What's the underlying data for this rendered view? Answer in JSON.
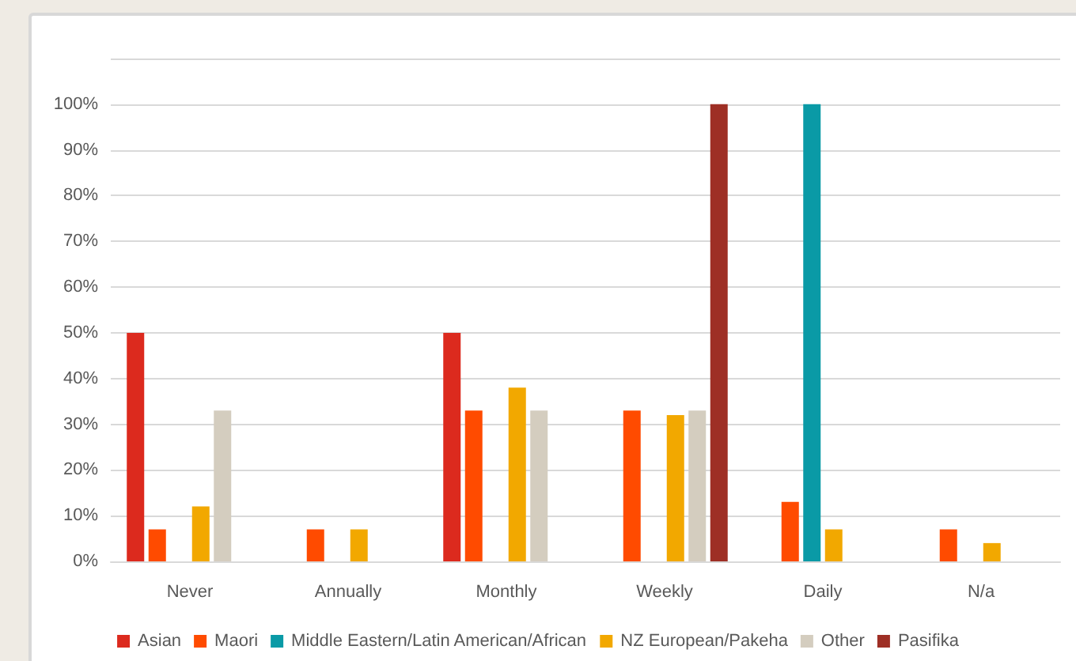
{
  "chart_data": {
    "type": "bar",
    "categories": [
      "Never",
      "Annually",
      "Monthly",
      "Weekly",
      "Daily",
      "N/a"
    ],
    "series": [
      {
        "name": "Asian",
        "color": "#dc2a1e",
        "values": [
          50,
          null,
          50,
          null,
          null,
          null
        ]
      },
      {
        "name": "Maori",
        "color": "#ff4b00",
        "values": [
          7,
          7,
          33,
          33,
          13,
          7
        ]
      },
      {
        "name": "Middle Eastern/Latin American/African",
        "color": "#0a9aa6",
        "values": [
          null,
          null,
          null,
          null,
          100,
          null
        ]
      },
      {
        "name": "NZ European/Pakeha",
        "color": "#f2a800",
        "values": [
          12,
          7,
          38,
          32,
          7,
          4
        ]
      },
      {
        "name": "Other",
        "color": "#d4cdbf",
        "values": [
          33,
          null,
          33,
          33,
          null,
          null
        ]
      },
      {
        "name": "Pasifika",
        "color": "#9e2f25",
        "values": [
          null,
          null,
          null,
          100,
          null,
          null
        ]
      }
    ],
    "ylim": [
      0,
      110
    ],
    "yticks": [
      {
        "value": 0,
        "label": "0%"
      },
      {
        "value": 10,
        "label": "10%"
      },
      {
        "value": 20,
        "label": "20%"
      },
      {
        "value": 30,
        "label": "30%"
      },
      {
        "value": 40,
        "label": "40%"
      },
      {
        "value": 50,
        "label": "50%"
      },
      {
        "value": 60,
        "label": "60%"
      },
      {
        "value": 70,
        "label": "70%"
      },
      {
        "value": 80,
        "label": "80%"
      },
      {
        "value": 90,
        "label": "90%"
      },
      {
        "value": 100,
        "label": "100%"
      },
      {
        "value": 110,
        "label": null
      }
    ],
    "grid": "y",
    "legend": "bottom"
  }
}
